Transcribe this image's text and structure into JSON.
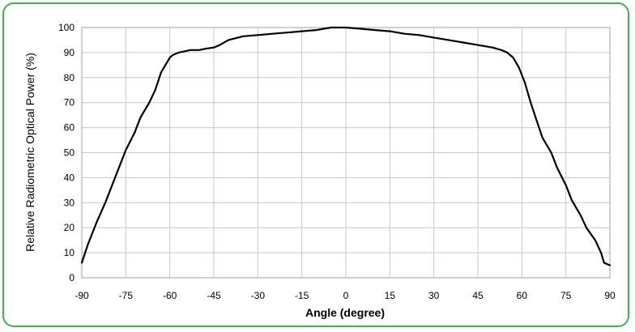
{
  "chart_data": {
    "type": "line",
    "title": "",
    "xlabel": "Angle (degree)",
    "ylabel": "Relative Radiometric Optical Power (%)",
    "xlim": [
      -90,
      90
    ],
    "ylim": [
      0,
      100
    ],
    "xticks": [
      -90,
      -75,
      -60,
      -45,
      -30,
      -15,
      0,
      15,
      30,
      45,
      60,
      75,
      90
    ],
    "yticks": [
      0,
      10,
      20,
      30,
      40,
      50,
      60,
      70,
      80,
      90,
      100
    ],
    "xtick_labels": [
      "-90",
      "-75",
      "-60",
      "-45",
      "-30",
      "-15",
      "0",
      "15",
      "30",
      "45",
      "60",
      "75",
      "90"
    ],
    "ytick_labels": [
      "0",
      "10",
      "20",
      "30",
      "40",
      "50",
      "60",
      "70",
      "80",
      "90",
      "100"
    ],
    "grid": true,
    "legend": "none",
    "colors": {
      "line": "#000000",
      "grid": "#c8c8c8",
      "frame": "#3db54a"
    },
    "series": [
      {
        "x": [
          -90,
          -88,
          -85,
          -82,
          -80,
          -77,
          -75,
          -72,
          -70,
          -67,
          -65,
          -63,
          -61,
          -60,
          -59,
          -57,
          -55,
          -53,
          -50,
          -48,
          -45,
          -43,
          -40,
          -35,
          -30,
          -25,
          -20,
          -15,
          -10,
          -5,
          0,
          5,
          10,
          15,
          20,
          25,
          30,
          35,
          40,
          45,
          50,
          53,
          55,
          57,
          59,
          61,
          63,
          65,
          67,
          70,
          72,
          75,
          77,
          80,
          82,
          85,
          87,
          88,
          90
        ],
        "y": [
          6,
          13,
          22,
          30,
          36,
          45,
          51,
          58,
          64,
          70,
          75,
          82,
          86,
          88,
          89,
          90,
          90.5,
          91,
          91,
          91.5,
          92,
          93,
          95,
          96.5,
          97,
          97.5,
          98,
          98.5,
          99,
          100,
          100,
          99.5,
          99,
          98.5,
          97.5,
          97,
          96,
          95,
          94,
          93,
          92,
          91,
          90,
          88,
          84,
          78,
          70,
          63,
          56,
          50,
          44,
          37,
          31,
          25,
          20,
          15,
          10,
          6,
          5
        ]
      }
    ]
  }
}
